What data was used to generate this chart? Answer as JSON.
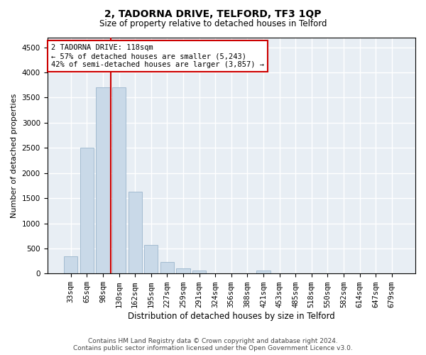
{
  "title_main": "2, TADORNA DRIVE, TELFORD, TF3 1QP",
  "title_sub": "Size of property relative to detached houses in Telford",
  "xlabel": "Distribution of detached houses by size in Telford",
  "ylabel": "Number of detached properties",
  "categories": [
    "33sqm",
    "65sqm",
    "98sqm",
    "130sqm",
    "162sqm",
    "195sqm",
    "227sqm",
    "259sqm",
    "291sqm",
    "324sqm",
    "356sqm",
    "388sqm",
    "421sqm",
    "453sqm",
    "485sqm",
    "518sqm",
    "550sqm",
    "582sqm",
    "614sqm",
    "647sqm",
    "679sqm"
  ],
  "values": [
    350,
    2500,
    3700,
    3700,
    1625,
    575,
    225,
    100,
    55,
    0,
    0,
    0,
    55,
    0,
    0,
    0,
    0,
    0,
    0,
    0,
    0
  ],
  "bar_color": "#c9d9e8",
  "bar_edge_color": "#9ab5cc",
  "vline_color": "#cc0000",
  "vline_x": 2.5,
  "annotation_text": "2 TADORNA DRIVE: 118sqm\n← 57% of detached houses are smaller (5,243)\n42% of semi-detached houses are larger (3,857) →",
  "annotation_box_facecolor": "#ffffff",
  "annotation_box_edgecolor": "#cc0000",
  "ylim": [
    0,
    4700
  ],
  "yticks": [
    0,
    500,
    1000,
    1500,
    2000,
    2500,
    3000,
    3500,
    4000,
    4500
  ],
  "footer_line1": "Contains HM Land Registry data © Crown copyright and database right 2024.",
  "footer_line2": "Contains public sector information licensed under the Open Government Licence v3.0.",
  "bg_color": "#ffffff",
  "plot_bg_color": "#e8eef4",
  "grid_color": "#ffffff",
  "title_fontsize": 10,
  "subtitle_fontsize": 8.5,
  "ylabel_fontsize": 8,
  "xlabel_fontsize": 8.5,
  "tick_fontsize": 7.5,
  "footer_fontsize": 6.5,
  "annot_fontsize": 7.5
}
